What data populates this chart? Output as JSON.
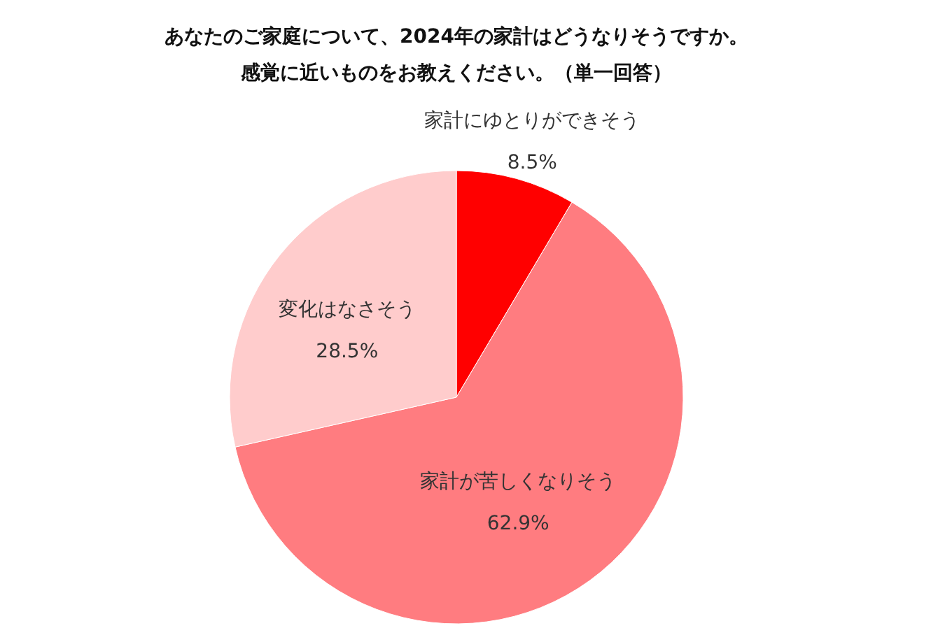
{
  "chart_data": {
    "type": "pie",
    "title": "あなたのご家庭について、2024年の家計はどうなりそうですか。",
    "subtitle": "感覚に近いものをお教えください。（単一回答）",
    "categories": [
      "家計にゆとりができそう",
      "家計が苦しくなりそう",
      "変化はなさそう"
    ],
    "values": [
      8.5,
      62.9,
      28.5
    ],
    "value_labels": [
      "8.5%",
      "62.9%",
      "28.5%"
    ],
    "colors": [
      "#ff0000",
      "#ff7c80",
      "#ffcccc"
    ],
    "legend": false
  }
}
